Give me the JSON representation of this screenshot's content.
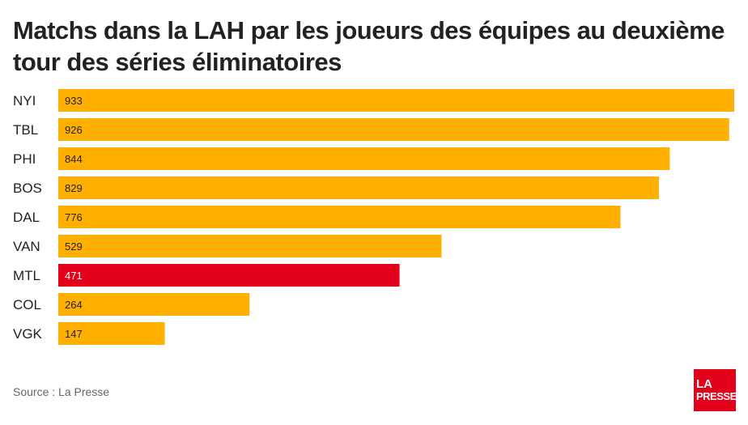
{
  "title": "Matchs dans la LAH par les joueurs des équipes au deuxième tour des séries éliminatoires",
  "source": "Source : La Presse",
  "logo": {
    "line1": "LA",
    "line2": "PRESSE"
  },
  "colors": {
    "bar": "#ffb000",
    "highlight": "#e2001a"
  },
  "chart_data": {
    "type": "bar",
    "orientation": "horizontal",
    "title": "Matchs dans la LAH par les joueurs des équipes au deuxième tour des séries éliminatoires",
    "categories": [
      "NYI",
      "TBL",
      "PHI",
      "BOS",
      "DAL",
      "VAN",
      "MTL",
      "COL",
      "VGK"
    ],
    "values": [
      933,
      926,
      844,
      829,
      776,
      529,
      471,
      264,
      147
    ],
    "highlight": "MTL",
    "xlim": [
      0,
      933
    ],
    "grid": false,
    "legend": "none"
  }
}
